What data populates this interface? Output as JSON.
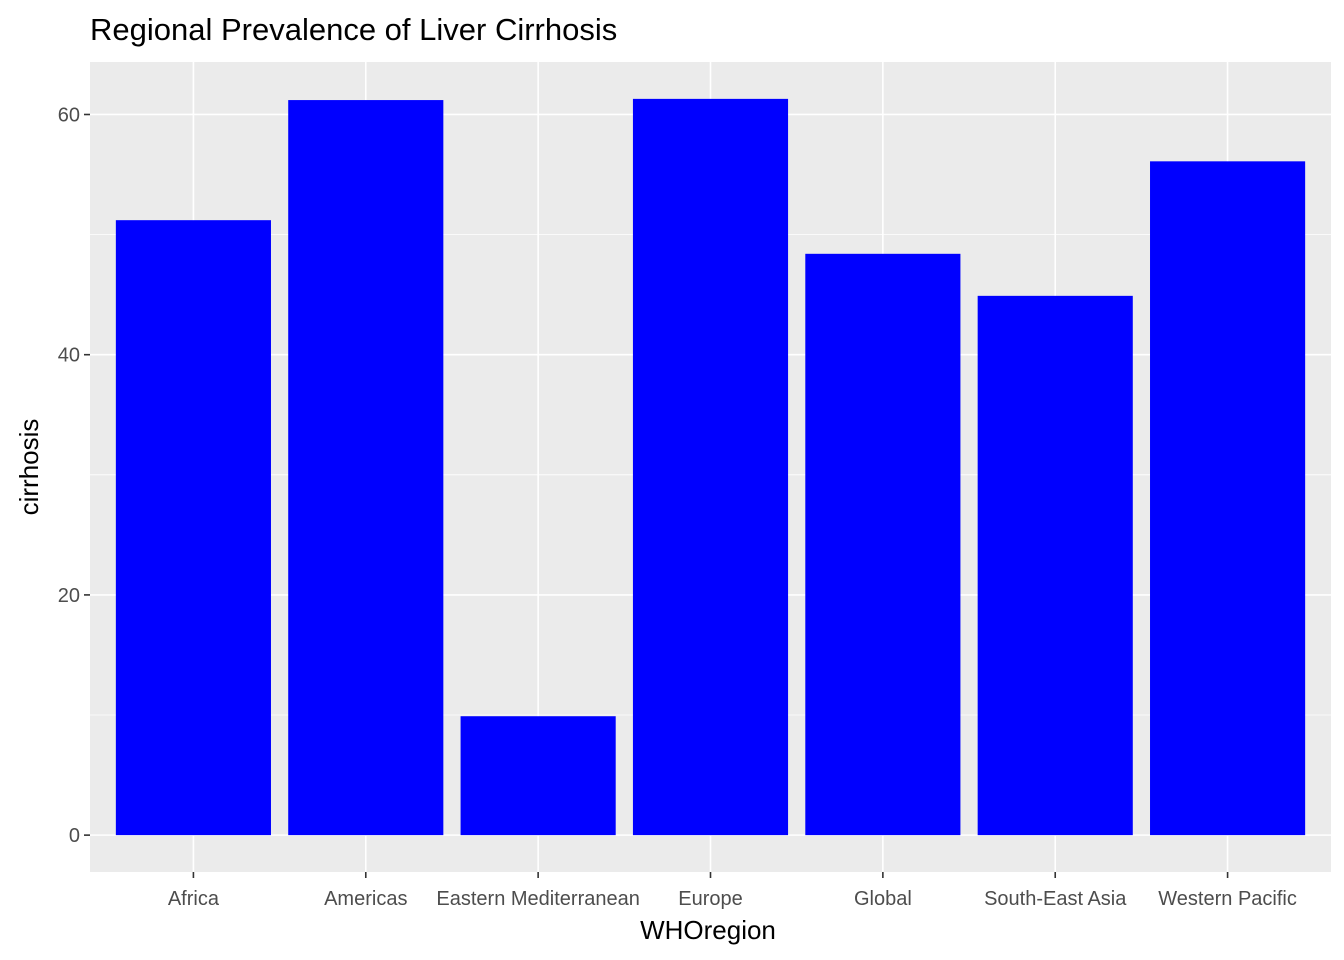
{
  "chart_data": {
    "type": "bar",
    "title": "Regional Prevalence of Liver Cirrhosis",
    "xlabel": "WHOregion",
    "ylabel": "cirrhosis",
    "categories": [
      "Africa",
      "Americas",
      "Eastern Mediterranean",
      "Europe",
      "Global",
      "South-East Asia",
      "Western Pacific"
    ],
    "values": [
      51.2,
      61.2,
      9.9,
      61.3,
      48.4,
      44.9,
      56.1
    ],
    "ylim": [
      -3.07,
      64.37
    ],
    "yticks": [
      0,
      20,
      40,
      60
    ],
    "grid": true,
    "legend": "none",
    "colors": {
      "bar": "#0000ff",
      "panel_background": "#ebebeb",
      "grid": "#ffffff",
      "tick_text": "#4d4d4d",
      "axis_title": "#000000"
    }
  }
}
